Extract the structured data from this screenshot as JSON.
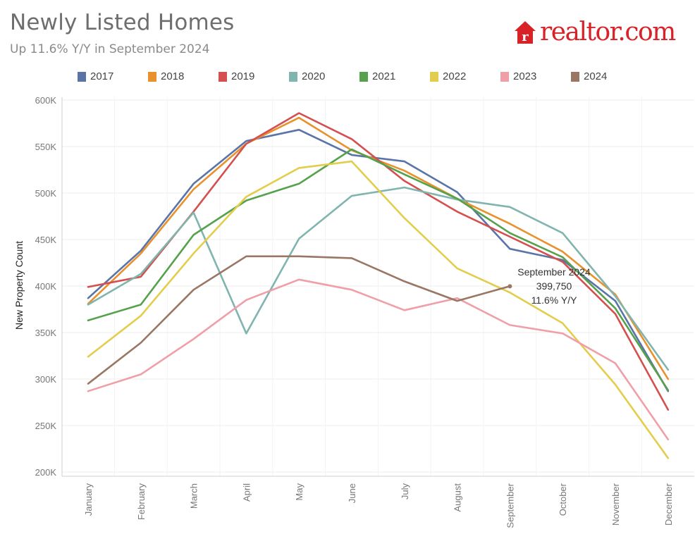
{
  "header": {
    "title": "Newly Listed Homes",
    "subtitle": "Up 11.6% Y/Y in September 2024",
    "logo_text": "realtor.com",
    "logo_mark": "r"
  },
  "chart_data": {
    "type": "line",
    "title": "Newly Listed Homes",
    "subtitle": "Up 11.6% Y/Y in September 2024",
    "xlabel": "",
    "ylabel": "New Property Count",
    "ylim": [
      200000,
      600000
    ],
    "yticks": [
      200000,
      250000,
      300000,
      350000,
      400000,
      450000,
      500000,
      550000,
      600000
    ],
    "ytick_labels": [
      "200K",
      "250K",
      "300K",
      "350K",
      "400K",
      "450K",
      "500K",
      "550K",
      "600K"
    ],
    "categories": [
      "January",
      "February",
      "March",
      "April",
      "May",
      "June",
      "July",
      "August",
      "September",
      "October",
      "November",
      "December"
    ],
    "grid": true,
    "legend_position": "top",
    "series": [
      {
        "name": "2017",
        "color": "#5a74a8",
        "values": [
          387000,
          438000,
          510000,
          556000,
          568000,
          541000,
          534000,
          501000,
          440000,
          428000,
          384000,
          287000
        ]
      },
      {
        "name": "2018",
        "color": "#e8912d",
        "values": [
          381000,
          435000,
          504000,
          553000,
          581000,
          546000,
          524000,
          494000,
          467000,
          437000,
          391000,
          300000
        ]
      },
      {
        "name": "2019",
        "color": "#d4504f",
        "values": [
          399000,
          410000,
          480000,
          553000,
          586000,
          558000,
          513000,
          480000,
          453000,
          426000,
          370000,
          267000
        ]
      },
      {
        "name": "2020",
        "color": "#7fb5ae",
        "values": [
          380000,
          413000,
          479000,
          349000,
          451000,
          497000,
          506000,
          493000,
          485000,
          457000,
          389000,
          310000
        ]
      },
      {
        "name": "2021",
        "color": "#56a14c",
        "values": [
          363000,
          380000,
          455000,
          492000,
          510000,
          547000,
          520000,
          494000,
          457000,
          431000,
          376000,
          288000
        ]
      },
      {
        "name": "2022",
        "color": "#e3cd4c",
        "values": [
          324000,
          368000,
          435000,
          496000,
          527000,
          534000,
          473000,
          419000,
          393000,
          360000,
          294000,
          215000
        ]
      },
      {
        "name": "2023",
        "color": "#ef9fa8",
        "values": [
          287000,
          305000,
          343000,
          385000,
          407000,
          396000,
          374000,
          387000,
          358000,
          349000,
          317000,
          235000
        ]
      },
      {
        "name": "2024",
        "color": "#9a7764",
        "values": [
          295000,
          339000,
          396000,
          432000,
          432000,
          430000,
          405000,
          384000,
          399750,
          null,
          null,
          null
        ]
      }
    ],
    "annotation": {
      "series": "2024",
      "category": "September",
      "lines": [
        "September 2024",
        "399,750",
        "11.6% Y/Y"
      ]
    }
  }
}
